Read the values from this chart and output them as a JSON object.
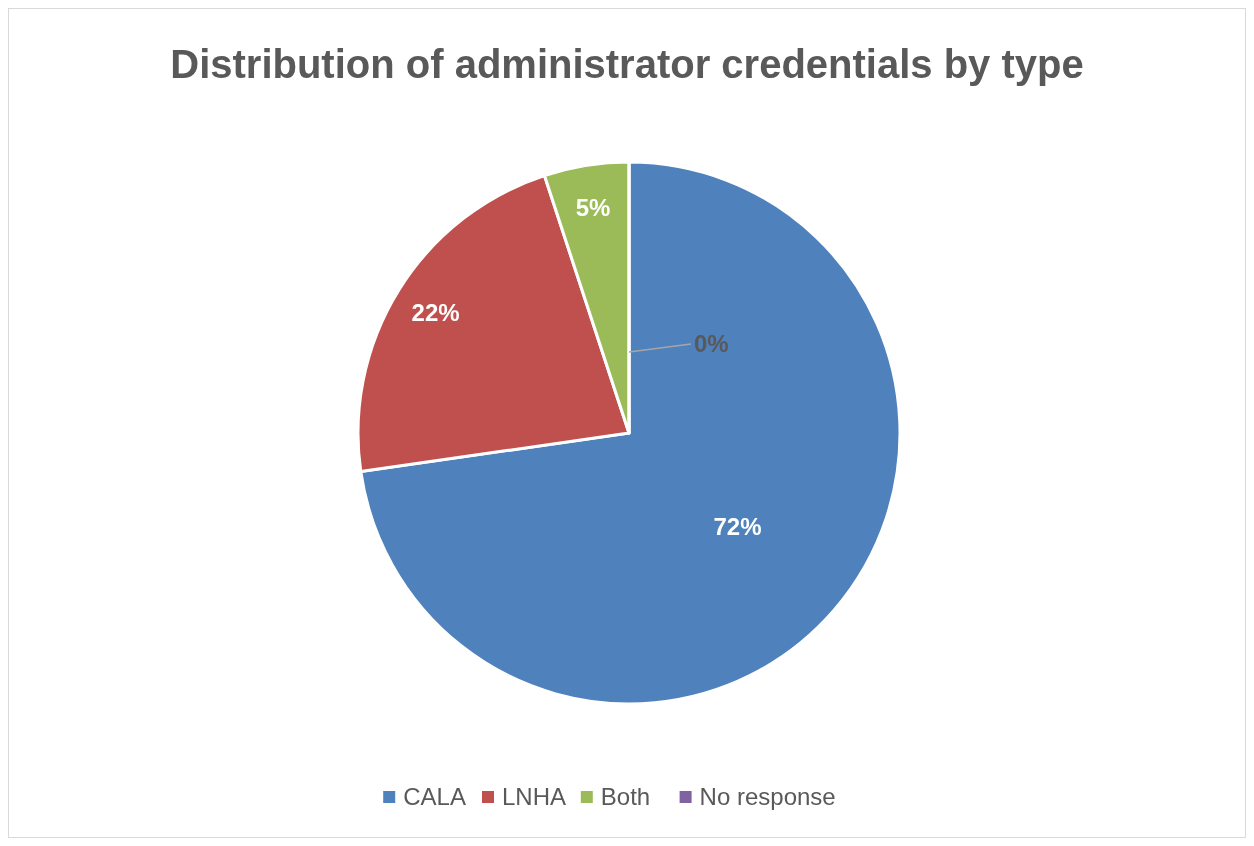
{
  "chart_data": {
    "type": "pie",
    "title": "Distribution of administrator credentials by type",
    "categories": [
      "CALA",
      "LNHA",
      "Both",
      "No response"
    ],
    "values": [
      72,
      22,
      5,
      0
    ],
    "colors": [
      "#4f81bd",
      "#c0504d",
      "#9bbb59",
      "#8064a2"
    ],
    "value_labels": [
      "72%",
      "22%",
      "5%",
      "0%"
    ],
    "legend": "bottom"
  }
}
